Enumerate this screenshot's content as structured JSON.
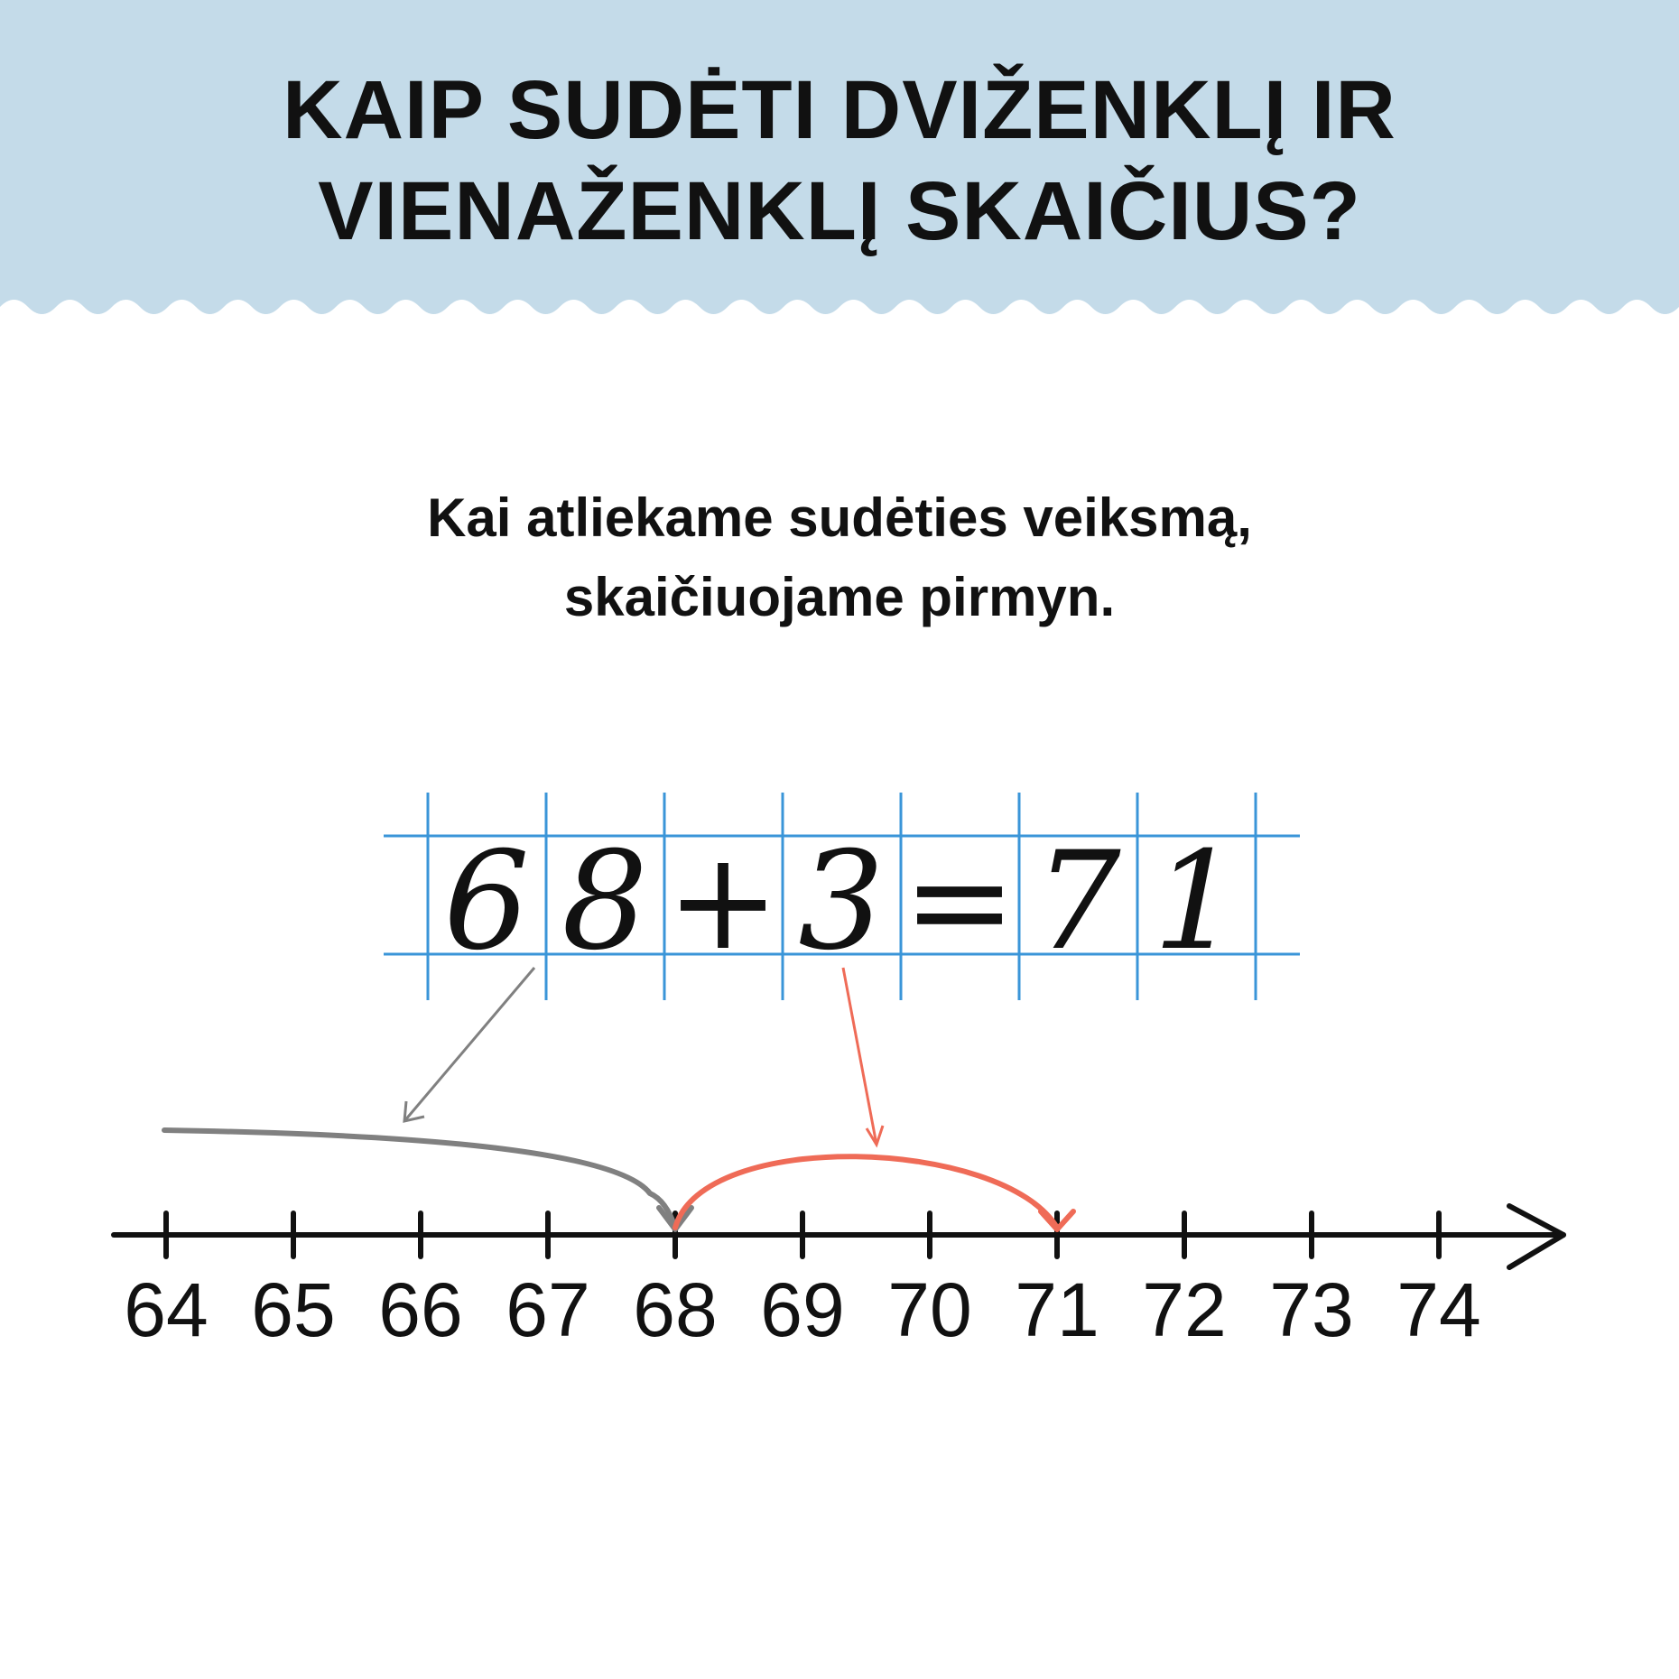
{
  "colors": {
    "banner": "#c4dbe9",
    "grid": "#3a95d8",
    "ink": "#111111",
    "first_addend_arrow": "#808080",
    "second_addend_arrow": "#ef6b57"
  },
  "title": {
    "line1": "KAIP SUDĖTI DVIŽENKLĮ IR",
    "line2": "VIENAŽENKLĮ SKAIČIUS?"
  },
  "subtitle": {
    "line1": "Kai atliekame sudėties veiksmą,",
    "line2": "skaičiuojame pirmyn."
  },
  "equation": {
    "cells": [
      "6",
      "8",
      "+",
      "3",
      "=",
      "7",
      "1"
    ]
  },
  "number_line": {
    "labels": [
      "64",
      "65",
      "66",
      "67",
      "68",
      "69",
      "70",
      "71",
      "72",
      "73",
      "74"
    ],
    "start": 64,
    "end": 74,
    "jump_from": 68,
    "jump_to": 71
  }
}
